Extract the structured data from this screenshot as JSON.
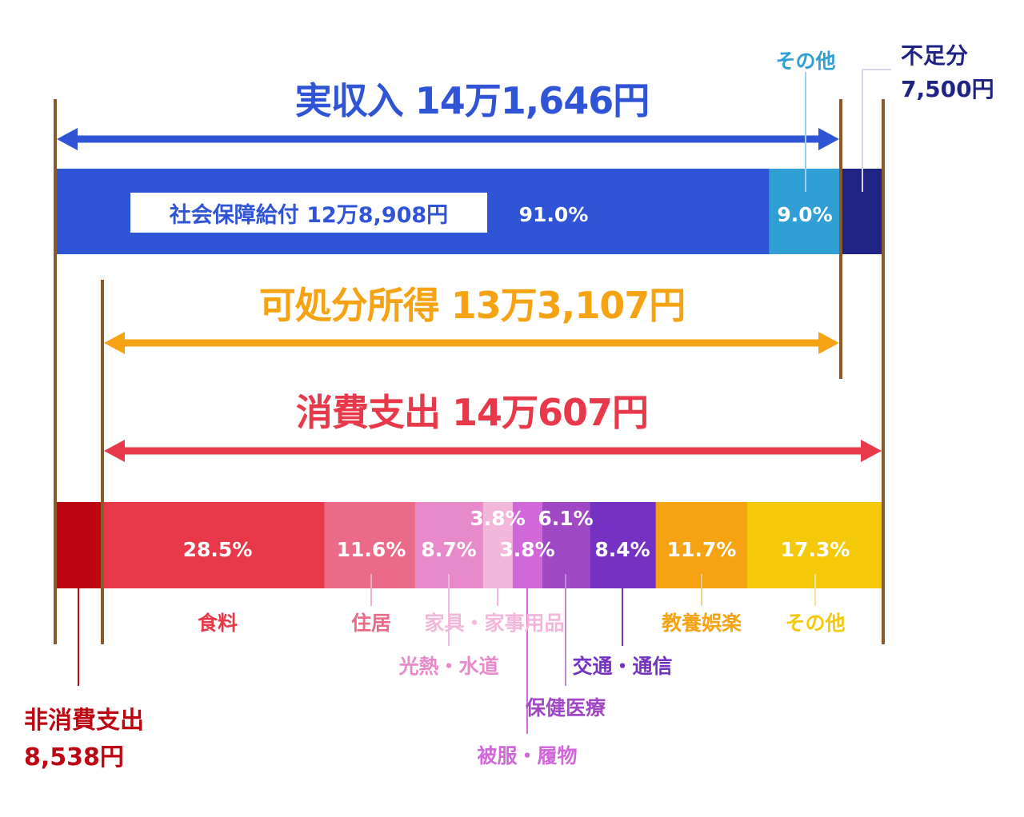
{
  "colors": {
    "frame": "#8b5a2b",
    "income": "#2f54d6",
    "income_other": "#2f9fd6",
    "shortfall": "#1f2384",
    "disposable": "#f5a313",
    "consumption": "#e8394a",
    "non_consumption": "#bc0612"
  },
  "labels": {
    "income_title": "実収入 14万1,646円",
    "disposable_title": "可処分所得 13万3,107円",
    "consumption_title": "消費支出 14万607円",
    "social_benefit": "社会保障給付 12万8,908円",
    "social_pct": "91.0%",
    "other_income_label": "その他",
    "other_income_pct": "9.0%",
    "shortfall_label": "不足分",
    "shortfall_value": "7,500円",
    "non_consumption_label": "非消費支出",
    "non_consumption_value": "8,538円"
  },
  "chart_data": [
    {
      "type": "bar",
      "title": "実収入 14万1,646円",
      "orientation": "horizontal-stacked",
      "series": [
        {
          "name": "社会保障給付 12万8,908円",
          "percent": 91.0
        },
        {
          "name": "その他",
          "percent": 9.0
        },
        {
          "name": "不足分 7,500円",
          "value": 7500
        }
      ]
    },
    {
      "type": "bar",
      "title": "消費支出 14万607円",
      "orientation": "horizontal-stacked",
      "categories": [
        "食料",
        "住居",
        "光熱・水道",
        "家具・家事用品",
        "被服・履物",
        "保健医療",
        "交通・通信",
        "教養娯楽",
        "その他"
      ],
      "values": [
        28.5,
        11.6,
        8.7,
        3.8,
        3.8,
        6.1,
        8.4,
        11.7,
        17.3
      ],
      "pct_labels": [
        "28.5%",
        "11.6%",
        "8.7%",
        "3.8%",
        "3.8%",
        "6.1%",
        "8.4%",
        "11.7%",
        "17.3%"
      ],
      "colors": [
        "#e8394a",
        "#ea6a87",
        "#e889c9",
        "#f3b7db",
        "#d167d9",
        "#a148c4",
        "#7431c2",
        "#f5a313",
        "#f4c90a"
      ],
      "non_consumption": {
        "label": "非消費支出",
        "value": "8,538円"
      }
    }
  ]
}
